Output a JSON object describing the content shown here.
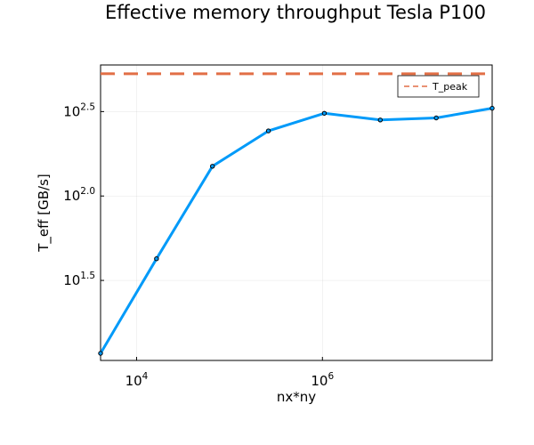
{
  "chart_data": {
    "type": "line",
    "title": "Effective memory throughput Tesla P100",
    "xlabel": "nx*ny",
    "ylabel": "T_eff [GB/s]",
    "x_scale": "log10",
    "y_scale": "log10",
    "xlim": [
      4096,
      67108864
    ],
    "ylim": [
      1.026,
      2.776
    ],
    "x_ticks": [
      {
        "value": 10000,
        "base": "10",
        "exp": "4"
      },
      {
        "value": 1000000,
        "base": "10",
        "exp": "6"
      }
    ],
    "y_ticks": [
      {
        "value": 31.62,
        "base": "10",
        "exp": "1.5"
      },
      {
        "value": 100,
        "base": "10",
        "exp": "2.0"
      },
      {
        "value": 316.2,
        "base": "10",
        "exp": "2.5"
      }
    ],
    "grid": true,
    "legend": {
      "position": "top-right",
      "entries": [
        "T_peak"
      ]
    },
    "series": [
      {
        "style": "solid",
        "color": "#009af9",
        "markers": true,
        "x": [
          4096,
          16384,
          65536,
          262144,
          1048576,
          4194304,
          16777216,
          67108864
        ],
        "y": [
          11.7,
          42.5,
          150.0,
          243.0,
          309.0,
          282.0,
          290.0,
          331.0
        ]
      },
      {
        "name": "T_peak",
        "style": "dashed",
        "color": "#e26f46",
        "markers": false,
        "hline": 530
      }
    ]
  }
}
